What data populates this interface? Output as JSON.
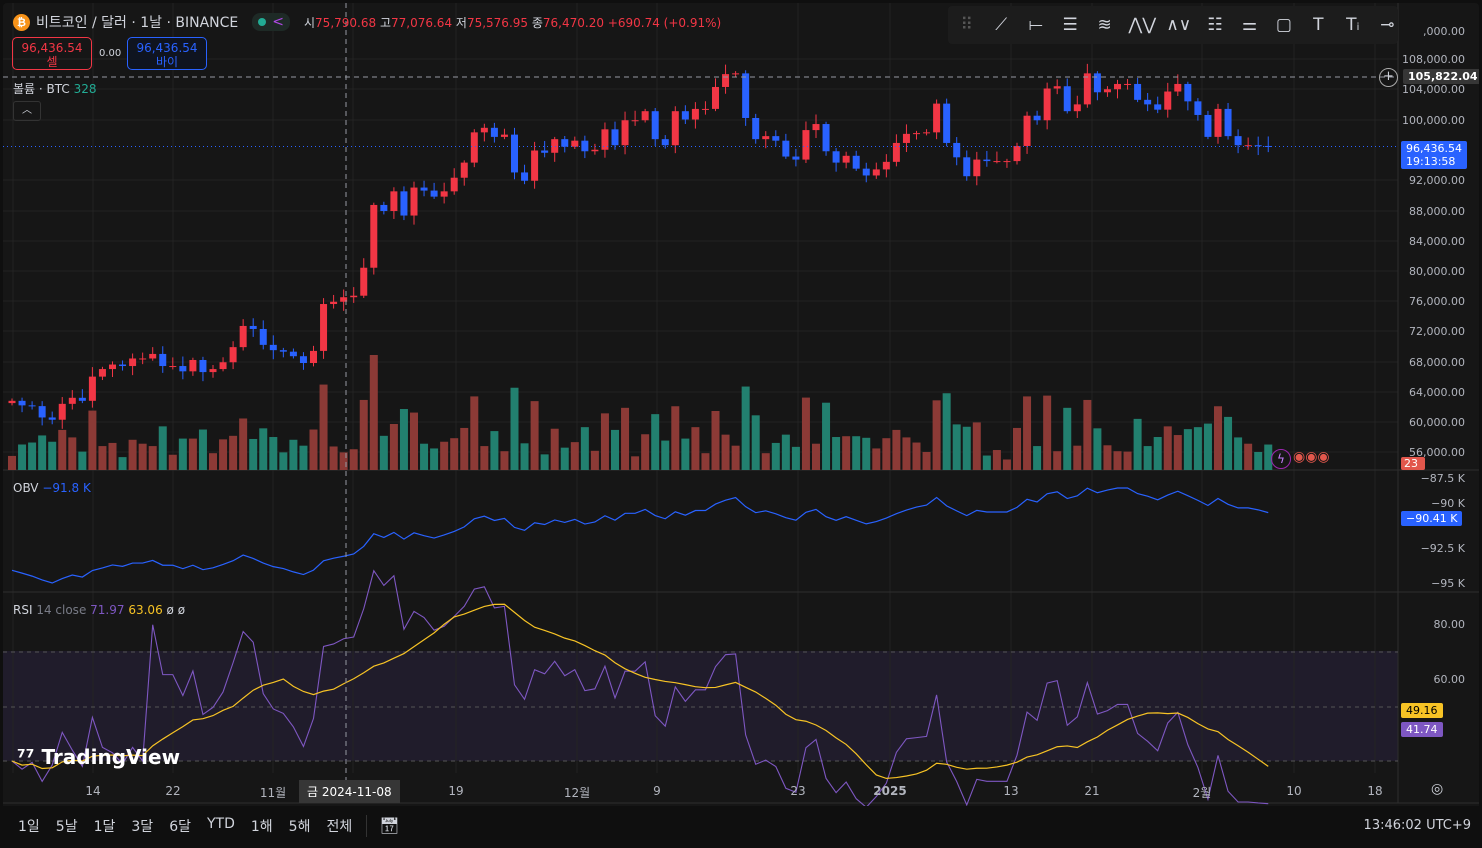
{
  "header": {
    "symbol_icon": "bitcoin-icon",
    "title": "비트코인 / 달러 · 1날 · BINANCE",
    "o_label": "시",
    "o": "75,790.68",
    "h_label": "고",
    "h": "77,076.64",
    "l_label": "저",
    "l": "75,576.95",
    "c_label": "종",
    "c": "76,470.20",
    "change": "+690.74 (+0.91%)"
  },
  "trade": {
    "sell_price": "96,436.54",
    "sell_label": "셀",
    "spread": "0.00",
    "buy_price": "96,436.54",
    "buy_label": "바이"
  },
  "volume_legend": {
    "label": "볼륨 · BTC",
    "value": "328"
  },
  "obv_legend": {
    "label": "OBV",
    "value": "−91.8 K"
  },
  "rsi_legend": {
    "label": "RSI",
    "params": "14 close",
    "value": "71.97",
    "ma": "63.06",
    "extra1": "ø",
    "extra2": "ø"
  },
  "price_axis": [
    "108,000.00",
    "104,000.00",
    "100,000.00",
    "92,000.00",
    "88,000.00",
    "84,000.00",
    "80,000.00",
    "76,000.00",
    "72,000.00",
    "68,000.00",
    "64,000.00",
    "60,000.00",
    "56,000.00"
  ],
  "price_axis_top": ",000.00",
  "crosshair_price": "105,822.04",
  "last_price": "96,436.54",
  "countdown": "19:13:58",
  "volume_tag": "23",
  "obv_axis": [
    "−87.5 K",
    "−90 K",
    "−92.5 K",
    "−95 K"
  ],
  "obv_tag": "−90.41 K",
  "rsi_axis": [
    "80.00",
    "60.00"
  ],
  "rsi_ma_tag": "49.16",
  "rsi_tag": "41.74",
  "time_axis": [
    "14",
    "22",
    "11월",
    "19",
    "12월",
    "9",
    "23",
    "2025",
    "13",
    "21",
    "2월",
    "10",
    "18"
  ],
  "crosshair_date": "금 2024-11-08",
  "ranges": [
    "1일",
    "5날",
    "1달",
    "3달",
    "6달",
    "YTD",
    "1해",
    "5해",
    "전체"
  ],
  "clock": "13:46:02 UTC+9",
  "logo": "TradingView",
  "toolbar_icons": [
    "drag-handle-icon",
    "trend-line-icon",
    "horizontal-line-icon",
    "parallel-channel-icon",
    "fib-icon",
    "xabcd-pattern-icon",
    "abcd-pattern-icon",
    "long-position-icon",
    "forecast-icon",
    "rectangle-icon",
    "text-icon",
    "text-note-icon",
    "more-tools-icon"
  ],
  "colors": {
    "up": "#f23645",
    "down": "#2962ff",
    "vol_up": "#8c3a36",
    "vol_down": "#22806f",
    "obv": "#2962ff",
    "rsi": "#7e57c2",
    "rsi_ma": "#f7c325"
  },
  "chart_data": {
    "type": "candlestick",
    "start_date": "2024-10-06",
    "interval": "1D",
    "closes": [
      62800,
      62200,
      62100,
      60600,
      60300,
      62400,
      63200,
      62800,
      66000,
      67000,
      67600,
      67400,
      68400,
      68400,
      69000,
      67400,
      67400,
      66700,
      68200,
      66600,
      67000,
      67900,
      69900,
      72700,
      72300,
      70200,
      69500,
      69300,
      68700,
      67800,
      69400,
      75600,
      75900,
      76500,
      76700,
      80400,
      88700,
      87900,
      90500,
      87300,
      91000,
      90600,
      89800,
      90500,
      92300,
      94300,
      98300,
      98900,
      97700,
      98000,
      93000,
      91900,
      95900,
      95600,
      97400,
      96400,
      97200,
      95800,
      96000,
      98700,
      96600,
      99900,
      99900,
      101100,
      97400,
      96600,
      101100,
      100000,
      101400,
      101400,
      104300,
      106000,
      106100,
      100200,
      97400,
      97800,
      97200,
      95100,
      94700,
      98600,
      99400,
      95800,
      94300,
      95200,
      93500,
      92600,
      93400,
      94400,
      96900,
      98100,
      98200,
      98300,
      102100,
      96900,
      95000,
      92500,
      94700,
      94500,
      94500,
      94500,
      96500,
      100500,
      99900,
      104100,
      104400,
      101100,
      102000,
      106100,
      103600,
      104000,
      104700,
      104700,
      102600,
      102000,
      101300,
      103700,
      104700,
      102400,
      100600,
      97700,
      101400,
      97800,
      96600,
      96600,
      96500,
      96436
    ]
  }
}
